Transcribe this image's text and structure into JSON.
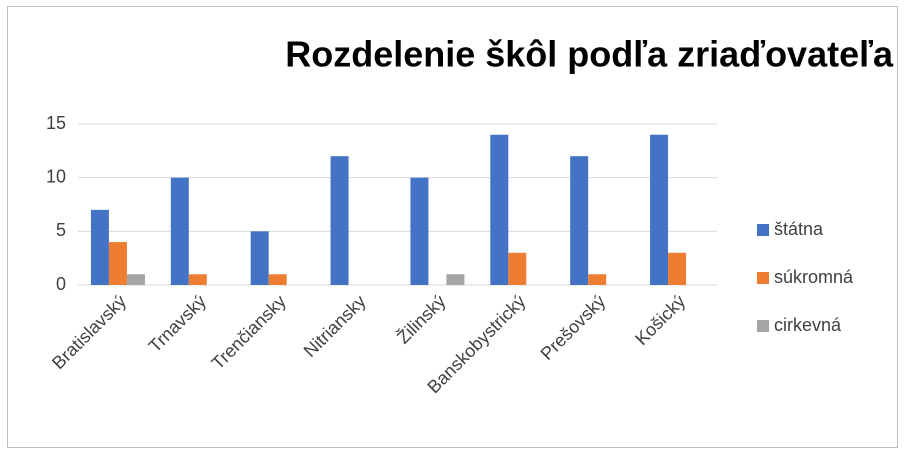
{
  "chart_data": {
    "type": "bar",
    "title": "Rozdelenie škôl podľa zriaďovateľa",
    "categories": [
      "Bratislavský",
      "Trnavský",
      "Trenčiansky",
      "Nitriansky",
      "Žilinský",
      "Banskobystrický",
      "Prešovský",
      "Košický"
    ],
    "series": [
      {
        "name": "štátna",
        "color": "#4472c4",
        "values": [
          7,
          10,
          5,
          12,
          10,
          14,
          12,
          14
        ]
      },
      {
        "name": "súkromná",
        "color": "#ed7d31",
        "values": [
          4,
          1,
          1,
          0,
          0,
          3,
          1,
          3
        ]
      },
      {
        "name": "cirkevná",
        "color": "#a5a5a5",
        "values": [
          1,
          0,
          0,
          0,
          1,
          0,
          0,
          0
        ]
      }
    ],
    "ylim": [
      0,
      15
    ],
    "yticks": [
      0,
      5,
      10,
      15
    ],
    "grid": true,
    "legend": "right"
  }
}
